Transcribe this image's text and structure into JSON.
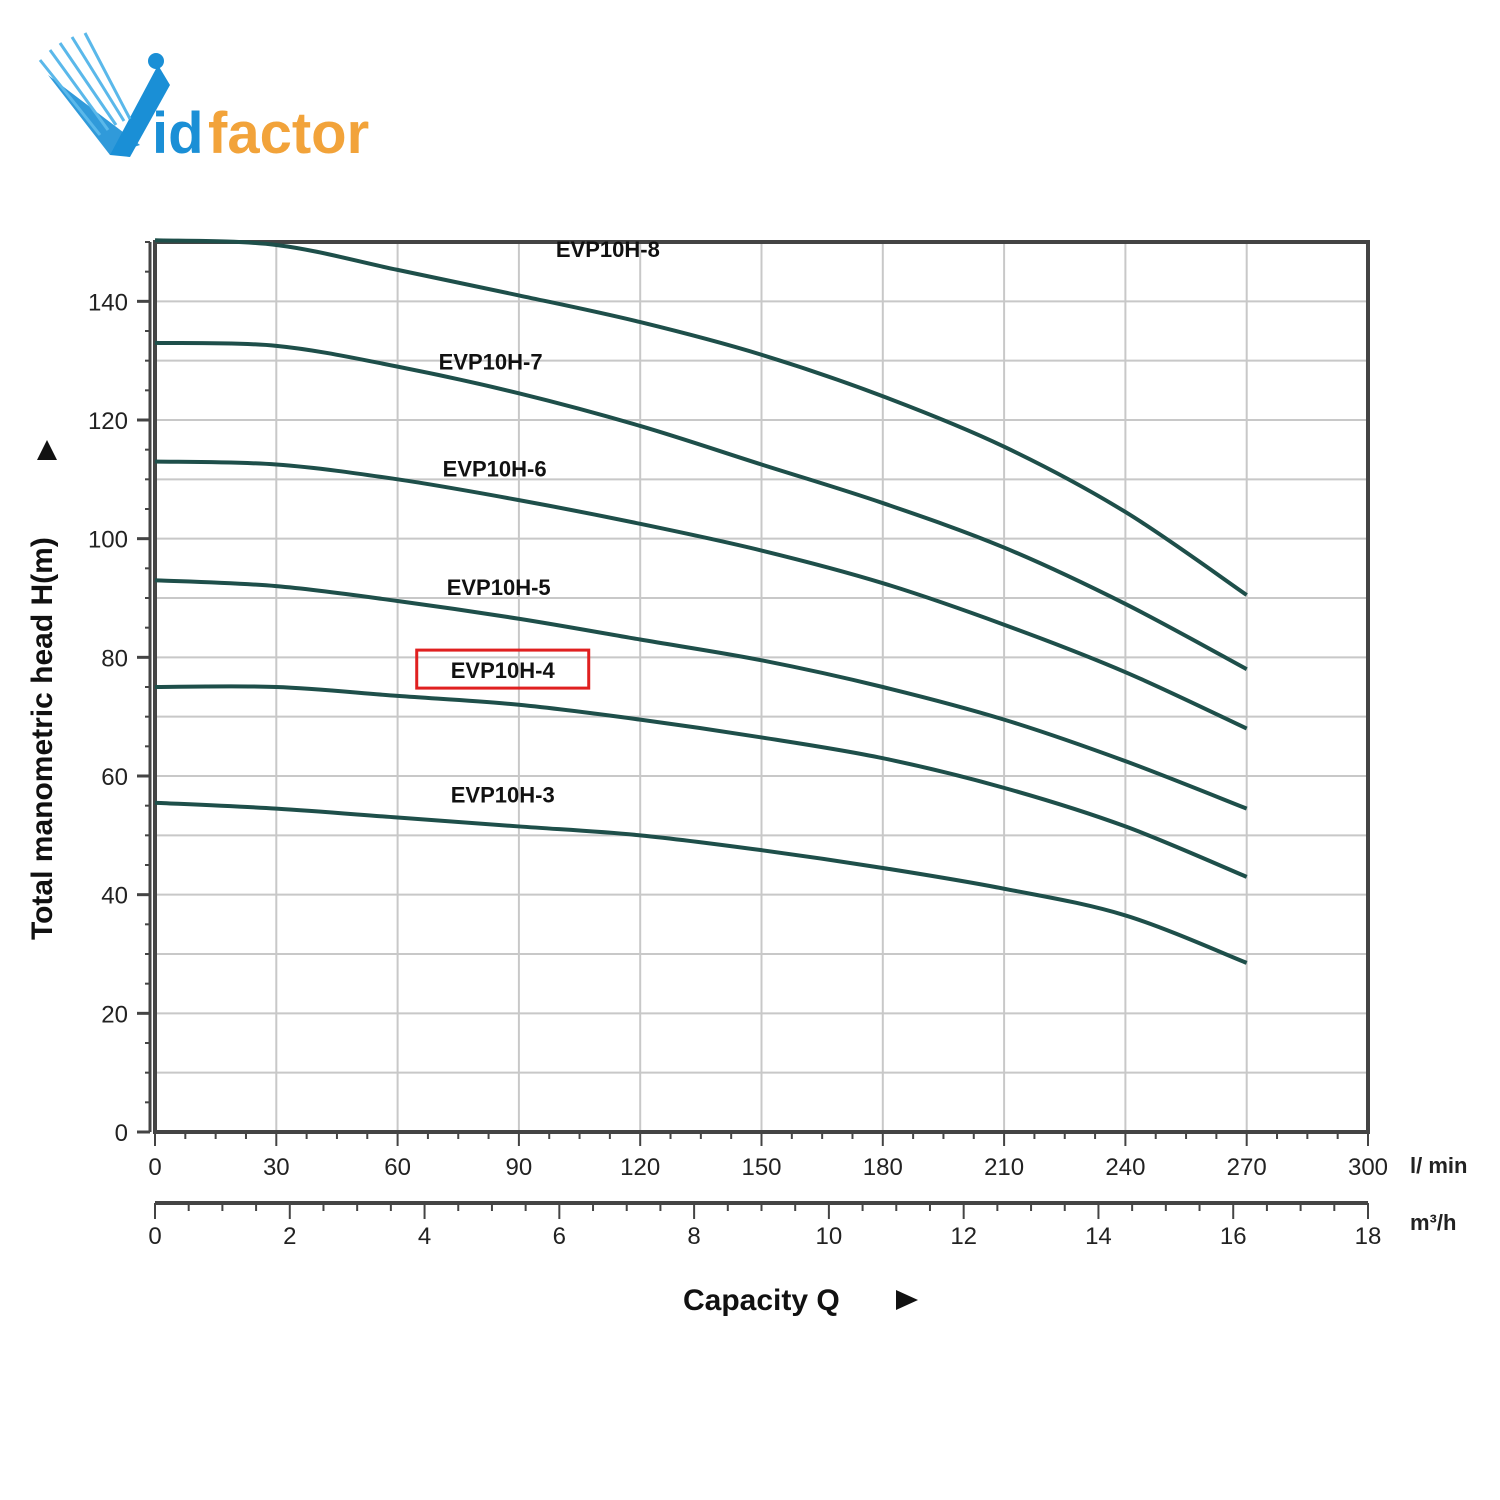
{
  "logo": {
    "text_v": "V",
    "text_id": "id",
    "text_factor": "factor",
    "color_blue": "#1a8fd6",
    "color_orange": "#f2a33a"
  },
  "chart_data": {
    "type": "line",
    "xlabel": "Capacity Q",
    "ylabel": "Total manometric head H(m)",
    "xunit": "l/ min",
    "x2unit": "m³/h",
    "xlim": [
      0,
      300
    ],
    "ylim": [
      0,
      150
    ],
    "x2lim": [
      0,
      18
    ],
    "xticks": [
      0,
      30,
      60,
      90,
      120,
      150,
      180,
      210,
      240,
      270,
      300
    ],
    "x2ticks": [
      0,
      2,
      4,
      6,
      8,
      10,
      12,
      14,
      16,
      18
    ],
    "yticks": [
      0,
      20,
      40,
      60,
      80,
      100,
      120,
      140
    ],
    "grid": true,
    "highlighted_series": "EVP10H-4",
    "highlight_color": "#e02020",
    "line_color": "#1e4f4a",
    "series": [
      {
        "name": "EVP10H-8",
        "x": [
          0,
          30,
          60,
          90,
          120,
          150,
          180,
          210,
          240,
          270
        ],
        "values": [
          150.3,
          149.5,
          145.3,
          141.0,
          136.5,
          131.0,
          124.0,
          115.5,
          104.5,
          90.5
        ]
      },
      {
        "name": "EVP10H-7",
        "x": [
          0,
          30,
          60,
          90,
          120,
          150,
          180,
          210,
          240,
          270
        ],
        "values": [
          133.0,
          132.5,
          129.0,
          124.5,
          119.0,
          112.5,
          106.0,
          98.5,
          89.0,
          78.0
        ]
      },
      {
        "name": "EVP10H-6",
        "x": [
          0,
          30,
          60,
          90,
          120,
          150,
          180,
          210,
          240,
          270
        ],
        "values": [
          113.0,
          112.5,
          110.0,
          106.5,
          102.5,
          98.0,
          92.5,
          85.5,
          77.5,
          68.0
        ]
      },
      {
        "name": "EVP10H-5",
        "x": [
          0,
          30,
          60,
          90,
          120,
          150,
          180,
          210,
          240,
          270
        ],
        "values": [
          93.0,
          92.0,
          89.5,
          86.5,
          83.0,
          79.5,
          75.0,
          69.5,
          62.5,
          54.5
        ]
      },
      {
        "name": "EVP10H-4",
        "x": [
          0,
          30,
          60,
          90,
          120,
          150,
          180,
          210,
          240,
          270
        ],
        "values": [
          75.0,
          75.0,
          73.5,
          72.0,
          69.5,
          66.5,
          63.0,
          58.0,
          51.5,
          43.0
        ]
      },
      {
        "name": "EVP10H-3",
        "x": [
          0,
          30,
          60,
          90,
          120,
          150,
          180,
          210,
          240,
          270
        ],
        "values": [
          55.5,
          54.5,
          53.0,
          51.5,
          50.0,
          47.5,
          44.5,
          41.0,
          36.5,
          28.5
        ]
      }
    ]
  }
}
